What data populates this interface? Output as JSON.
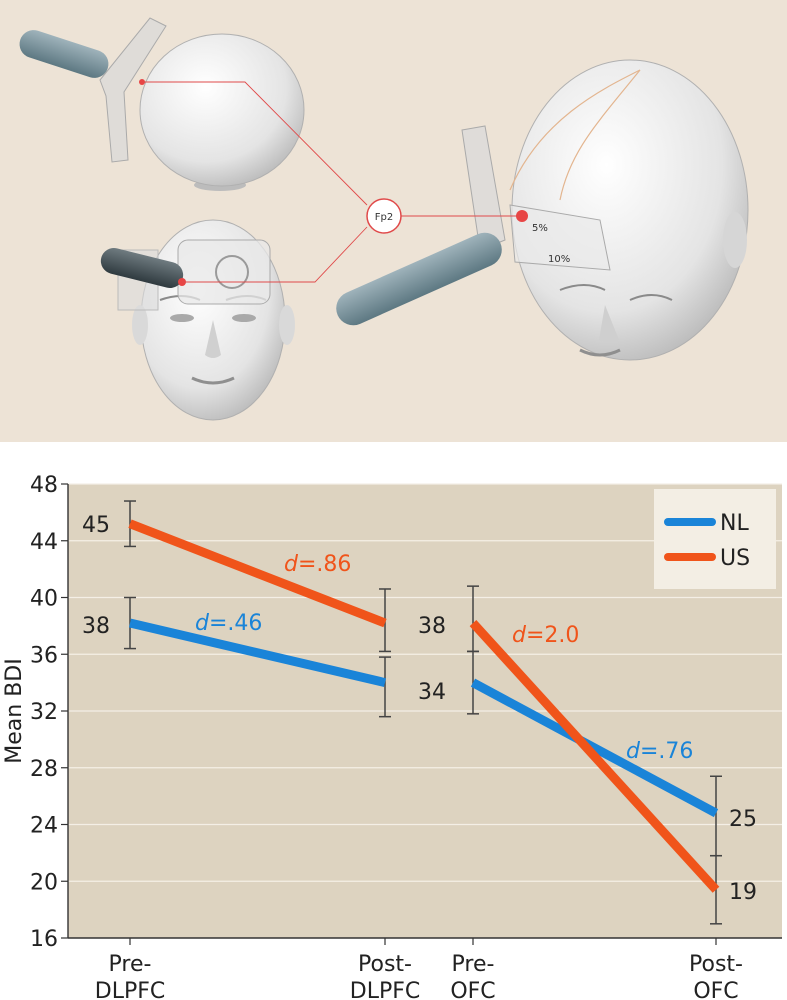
{
  "illustration": {
    "marker_label": "Fp2",
    "percent_5": "5%",
    "percent_10": "10%"
  },
  "chart_data": {
    "type": "line",
    "categories": [
      "Pre-DLPFC",
      "Post-DLPFC",
      "Pre-OFC",
      "Post-OFC"
    ],
    "category_lines": [
      [
        "Pre-",
        "DLPFC"
      ],
      [
        "Post-",
        "DLPFC"
      ],
      [
        "Pre-",
        "OFC"
      ],
      [
        "Post-",
        "OFC"
      ]
    ],
    "ylabel": "Mean BDI",
    "ylim": [
      16,
      48
    ],
    "yticks": [
      16,
      20,
      24,
      28,
      32,
      36,
      40,
      44,
      48
    ],
    "grid": true,
    "legend_position": "top-right",
    "series": [
      {
        "name": "NL",
        "color": "#1a84d8",
        "segments": [
          {
            "from": 0,
            "to": 1,
            "values": [
              38.2,
              34.0
            ]
          },
          {
            "from": 2,
            "to": 3,
            "values": [
              34.0,
              24.8
            ]
          }
        ],
        "error_bars": [
          {
            "x": 0,
            "low": 36.4,
            "high": 40.0
          },
          {
            "x": 1,
            "low": 31.6,
            "high": 35.8
          },
          {
            "x": 2,
            "low": 31.8,
            "high": 36.2
          },
          {
            "x": 3,
            "low": 21.8,
            "high": 27.4
          }
        ],
        "effect_sizes": [
          "d=.46",
          "d=.76"
        ]
      },
      {
        "name": "US",
        "color": "#f0541a",
        "segments": [
          {
            "from": 0,
            "to": 1,
            "values": [
              45.2,
              38.2
            ]
          },
          {
            "from": 2,
            "to": 3,
            "values": [
              38.2,
              19.4
            ]
          }
        ],
        "error_bars": [
          {
            "x": 0,
            "low": 43.6,
            "high": 46.8
          },
          {
            "x": 1,
            "low": 36.2,
            "high": 40.6
          },
          {
            "x": 2,
            "low": 36.2,
            "high": 40.8
          },
          {
            "x": 3,
            "low": 17.0,
            "high": 21.8
          }
        ],
        "effect_sizes": [
          "d=.86",
          "d=2.0"
        ]
      }
    ],
    "value_labels": [
      "45",
      "38",
      "38",
      "34",
      "25",
      "19"
    ]
  }
}
